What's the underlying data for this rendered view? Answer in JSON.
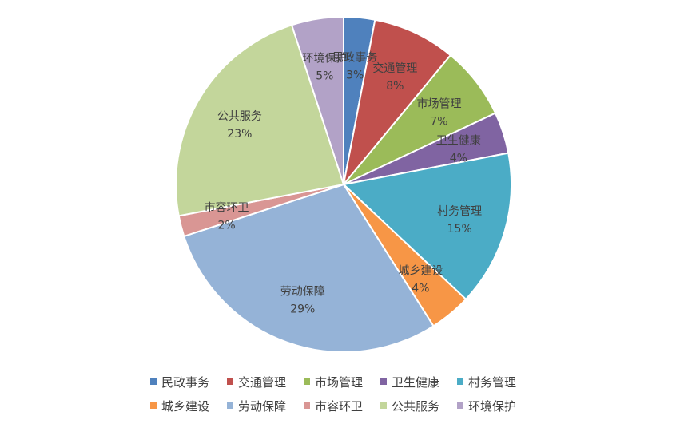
{
  "chart_data": {
    "type": "pie",
    "categories": [
      "民政事务",
      "交通管理",
      "市场管理",
      "卫生健康",
      "村务管理",
      "城乡建设",
      "劳动保障",
      "市容环卫",
      "公共服务",
      "环境保护"
    ],
    "values": [
      3,
      8,
      7,
      4,
      15,
      4,
      29,
      2,
      23,
      5
    ],
    "labels": [
      "3%",
      "8%",
      "7%",
      "4%",
      "15%",
      "4%",
      "29%",
      "2%",
      "23%",
      "5%"
    ],
    "colors": [
      "#4F81BD",
      "#C0504D",
      "#9BBB59",
      "#8064A2",
      "#4BACC6",
      "#F79646",
      "#95B3D7",
      "#D99694",
      "#C3D69B",
      "#B2A2C7"
    ],
    "legend_position": "bottom",
    "title": ""
  }
}
